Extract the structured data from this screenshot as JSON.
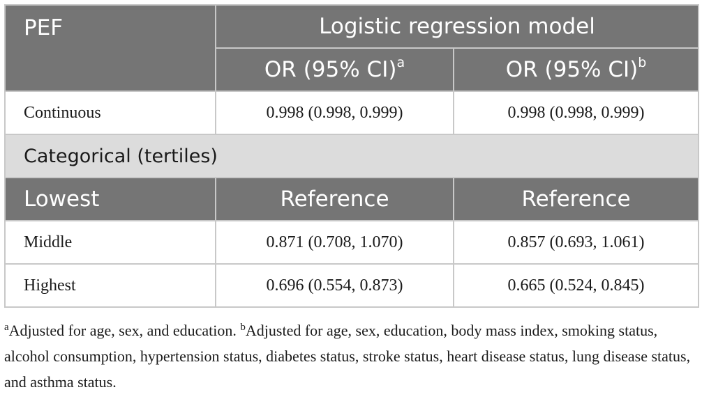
{
  "table": {
    "header": {
      "col1": "PEF",
      "group_title": "Logistic regression model",
      "subcol_a_label": "OR (95% CI)",
      "subcol_a_sup": "a",
      "subcol_b_label": "OR (95% CI)",
      "subcol_b_sup": "b"
    },
    "continuous": {
      "label": "Continuous",
      "a": "0.998 (0.998, 0.999)",
      "b": "0.998 (0.998, 0.999)"
    },
    "section_title": "Categorical (tertiles)",
    "lowest": {
      "label": "Lowest",
      "a": "Reference",
      "b": "Reference"
    },
    "middle": {
      "label": "Middle",
      "a": "0.871 (0.708, 1.070)",
      "b": "0.857 (0.693, 1.061)"
    },
    "highest": {
      "label": "Highest",
      "a": "0.696 (0.554, 0.873)",
      "b": "0.665 (0.524, 0.845)"
    }
  },
  "footnote": {
    "a_marker": "a",
    "a_text": "Adjusted for age, sex, and education.",
    "b_marker": "b",
    "b_text": "Adjusted for age, sex, education, body mass index, smoking status, alcohol consumption, hypertension status, diabetes status, stroke status, heart disease status, lung disease status, and asthma status."
  }
}
